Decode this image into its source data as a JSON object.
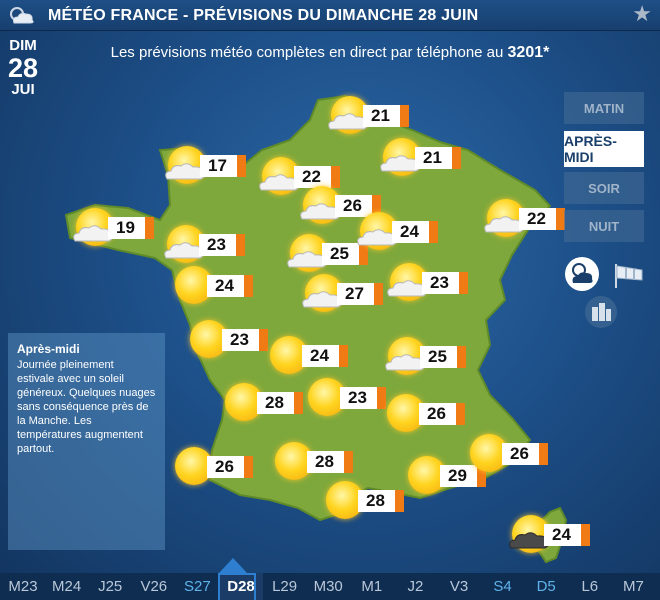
{
  "header": {
    "title": "MÉTÉO FRANCE - PRÉVISIONS DU DIMANCHE 28 JUIN",
    "logo_icon": "sun-cloud-logo-icon",
    "favorite_icon": "star-icon"
  },
  "date": {
    "dow": "DIM",
    "num": "28",
    "month": "JUI"
  },
  "promo": {
    "text": "Les prévisions météo complètes en direct par téléphone au",
    "number": "3201*"
  },
  "periods": [
    {
      "label": "MATIN",
      "active": false
    },
    {
      "label": "APRÈS-MIDI",
      "active": true
    },
    {
      "label": "SOIR",
      "active": false
    },
    {
      "label": "NUIT",
      "active": false
    }
  ],
  "tools": [
    "weather-view-icon",
    "wind-view-icon",
    "city-view-icon"
  ],
  "info": {
    "title": "Après-midi",
    "lines": [
      "Journée pleinement",
      "estivale avec un soleil",
      "généreux. Quelques nuages",
      "sans conséquence près de",
      "la Manche. Les",
      "températures augmentent",
      "partout."
    ]
  },
  "forecasts": [
    {
      "temp": "21",
      "icon": "partly-cloudy"
    },
    {
      "temp": "17",
      "icon": "partly-cloudy"
    },
    {
      "temp": "22",
      "icon": "partly-cloudy"
    },
    {
      "temp": "21",
      "icon": "partly-cloudy"
    },
    {
      "temp": "26",
      "icon": "partly-cloudy"
    },
    {
      "temp": "22",
      "icon": "partly-cloudy"
    },
    {
      "temp": "19",
      "icon": "partly-cloudy"
    },
    {
      "temp": "23",
      "icon": "partly-cloudy"
    },
    {
      "temp": "25",
      "icon": "partly-cloudy"
    },
    {
      "temp": "24",
      "icon": "partly-cloudy"
    },
    {
      "temp": "24",
      "icon": "sunny"
    },
    {
      "temp": "27",
      "icon": "partly-cloudy"
    },
    {
      "temp": "23",
      "icon": "partly-cloudy"
    },
    {
      "temp": "23",
      "icon": "sunny"
    },
    {
      "temp": "24",
      "icon": "sunny"
    },
    {
      "temp": "25",
      "icon": "partly-cloudy"
    },
    {
      "temp": "28",
      "icon": "sunny"
    },
    {
      "temp": "23",
      "icon": "sunny"
    },
    {
      "temp": "26",
      "icon": "sunny"
    },
    {
      "temp": "26",
      "icon": "sunny"
    },
    {
      "temp": "28",
      "icon": "sunny"
    },
    {
      "temp": "29",
      "icon": "sunny"
    },
    {
      "temp": "26",
      "icon": "sunny"
    },
    {
      "temp": "28",
      "icon": "sunny"
    },
    {
      "temp": "24",
      "icon": "stormy"
    }
  ],
  "days": [
    {
      "label": "M23",
      "weekend": false,
      "selected": false
    },
    {
      "label": "M24",
      "weekend": false,
      "selected": false
    },
    {
      "label": "J25",
      "weekend": false,
      "selected": false
    },
    {
      "label": "V26",
      "weekend": false,
      "selected": false
    },
    {
      "label": "S27",
      "weekend": true,
      "selected": false
    },
    {
      "label": "D28",
      "weekend": true,
      "selected": true
    },
    {
      "label": "L29",
      "weekend": false,
      "selected": false
    },
    {
      "label": "M30",
      "weekend": false,
      "selected": false
    },
    {
      "label": "M1",
      "weekend": false,
      "selected": false
    },
    {
      "label": "J2",
      "weekend": false,
      "selected": false
    },
    {
      "label": "V3",
      "weekend": false,
      "selected": false
    },
    {
      "label": "S4",
      "weekend": true,
      "selected": false
    },
    {
      "label": "D5",
      "weekend": true,
      "selected": false
    },
    {
      "label": "L6",
      "weekend": false,
      "selected": false
    },
    {
      "label": "M7",
      "weekend": false,
      "selected": false
    }
  ],
  "colors": {
    "land": "#7ea83c",
    "land_border": "#5f8a2a",
    "accent": "#f07a14",
    "sea": "#1d4f88"
  }
}
